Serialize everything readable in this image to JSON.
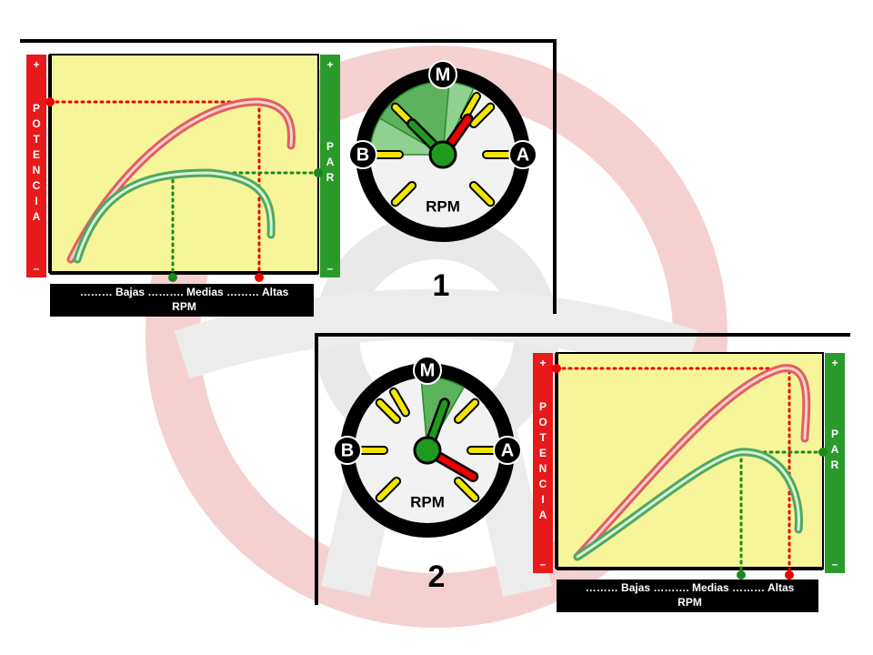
{
  "panels": [
    {
      "number": "1",
      "power_bar": {
        "plus": "+",
        "label": "POTENCIA",
        "minus": "–"
      },
      "torque_bar": {
        "plus": "+",
        "label": "PAR",
        "minus": "–"
      },
      "x_axis": {
        "zones": "……… Bajas ………. Medias ……… Altas",
        "label": "RPM"
      },
      "gauge": {
        "top": "M",
        "left": "B",
        "right": "A",
        "label": "RPM"
      }
    },
    {
      "number": "2",
      "power_bar": {
        "plus": "+",
        "label": "POTENCIA",
        "minus": "–"
      },
      "torque_bar": {
        "plus": "+",
        "label": "PAR",
        "minus": "–"
      },
      "x_axis": {
        "zones": "……… Bajas ………. Medias ……… Altas",
        "label": "RPM"
      },
      "gauge": {
        "top": "M",
        "left": "B",
        "right": "A",
        "label": "RPM"
      }
    }
  ]
}
